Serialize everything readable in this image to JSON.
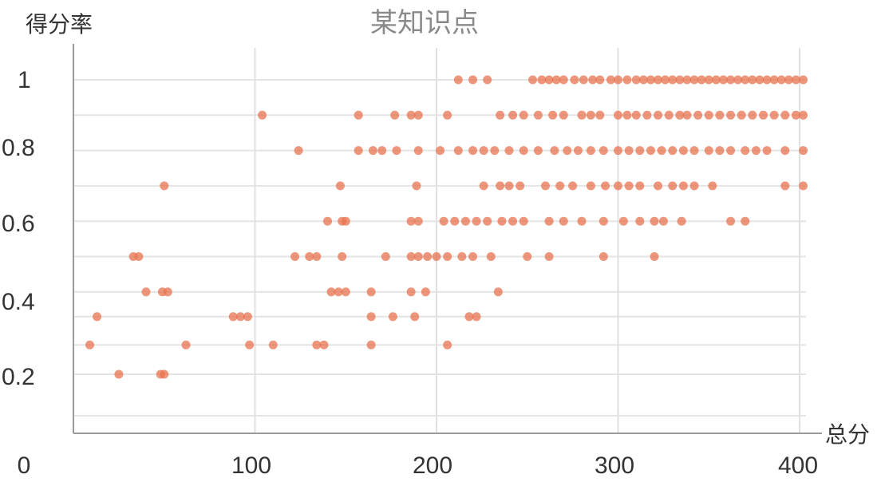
{
  "chart_data": {
    "type": "scatter",
    "title": "某知识点",
    "xlabel": "总分",
    "ylabel": "得分率",
    "xlim": [
      0,
      400
    ],
    "ylim": [
      0,
      1
    ],
    "x_ticks": [
      "0",
      "100",
      "200",
      "300",
      "400"
    ],
    "y_ticks": [
      "0",
      "0.2",
      "0.4",
      "0.6",
      "0.8",
      "1"
    ],
    "grid": true,
    "point_color": "#e8734f",
    "series": [
      {
        "points": [
          [
            212,
            1
          ],
          [
            220,
            1
          ],
          [
            228,
            1
          ],
          [
            253,
            1
          ],
          [
            258,
            1
          ],
          [
            262,
            1
          ],
          [
            266,
            1
          ],
          [
            270,
            1
          ],
          [
            276,
            1
          ],
          [
            281,
            1
          ],
          [
            286,
            1
          ],
          [
            290,
            1
          ],
          [
            296,
            1
          ],
          [
            300,
            1
          ],
          [
            305,
            1
          ],
          [
            310,
            1
          ],
          [
            314,
            1
          ],
          [
            318,
            1
          ],
          [
            322,
            1
          ],
          [
            326,
            1
          ],
          [
            330,
            1
          ],
          [
            334,
            1
          ],
          [
            338,
            1
          ],
          [
            342,
            1
          ],
          [
            346,
            1
          ],
          [
            350,
            1
          ],
          [
            354,
            1
          ],
          [
            358,
            1
          ],
          [
            362,
            1
          ],
          [
            366,
            1
          ],
          [
            370,
            1
          ],
          [
            374,
            1
          ],
          [
            378,
            1
          ],
          [
            382,
            1
          ],
          [
            386,
            1
          ],
          [
            390,
            1
          ],
          [
            394,
            1
          ],
          [
            398,
            1
          ],
          [
            402,
            1
          ],
          [
            104,
            0.9
          ],
          [
            157,
            0.9
          ],
          [
            177,
            0.9
          ],
          [
            186,
            0.9
          ],
          [
            190,
            0.9
          ],
          [
            206,
            0.9
          ],
          [
            235,
            0.9
          ],
          [
            242,
            0.9
          ],
          [
            248,
            0.9
          ],
          [
            256,
            0.9
          ],
          [
            264,
            0.9
          ],
          [
            270,
            0.9
          ],
          [
            280,
            0.9
          ],
          [
            285,
            0.9
          ],
          [
            290,
            0.9
          ],
          [
            300,
            0.9
          ],
          [
            305,
            0.9
          ],
          [
            310,
            0.9
          ],
          [
            316,
            0.9
          ],
          [
            322,
            0.9
          ],
          [
            328,
            0.9
          ],
          [
            334,
            0.9
          ],
          [
            338,
            0.9
          ],
          [
            344,
            0.9
          ],
          [
            350,
            0.9
          ],
          [
            356,
            0.9
          ],
          [
            362,
            0.9
          ],
          [
            368,
            0.9
          ],
          [
            374,
            0.9
          ],
          [
            380,
            0.9
          ],
          [
            386,
            0.9
          ],
          [
            392,
            0.9
          ],
          [
            398,
            0.9
          ],
          [
            402,
            0.9
          ],
          [
            124,
            0.8
          ],
          [
            157,
            0.8
          ],
          [
            165,
            0.8
          ],
          [
            170,
            0.8
          ],
          [
            178,
            0.8
          ],
          [
            190,
            0.8
          ],
          [
            202,
            0.8
          ],
          [
            212,
            0.8
          ],
          [
            220,
            0.8
          ],
          [
            226,
            0.8
          ],
          [
            232,
            0.8
          ],
          [
            240,
            0.8
          ],
          [
            248,
            0.8
          ],
          [
            256,
            0.8
          ],
          [
            265,
            0.8
          ],
          [
            272,
            0.8
          ],
          [
            278,
            0.8
          ],
          [
            285,
            0.8
          ],
          [
            292,
            0.8
          ],
          [
            300,
            0.8
          ],
          [
            306,
            0.8
          ],
          [
            312,
            0.8
          ],
          [
            318,
            0.8
          ],
          [
            324,
            0.8
          ],
          [
            330,
            0.8
          ],
          [
            336,
            0.8
          ],
          [
            342,
            0.8
          ],
          [
            350,
            0.8
          ],
          [
            356,
            0.8
          ],
          [
            362,
            0.8
          ],
          [
            370,
            0.8
          ],
          [
            376,
            0.8
          ],
          [
            382,
            0.8
          ],
          [
            392,
            0.8
          ],
          [
            402,
            0.8
          ],
          [
            50,
            0.7
          ],
          [
            147,
            0.7
          ],
          [
            189,
            0.7
          ],
          [
            226,
            0.7
          ],
          [
            235,
            0.7
          ],
          [
            240,
            0.7
          ],
          [
            246,
            0.7
          ],
          [
            260,
            0.7
          ],
          [
            268,
            0.7
          ],
          [
            275,
            0.7
          ],
          [
            285,
            0.7
          ],
          [
            293,
            0.7
          ],
          [
            300,
            0.7
          ],
          [
            306,
            0.7
          ],
          [
            312,
            0.7
          ],
          [
            322,
            0.7
          ],
          [
            330,
            0.7
          ],
          [
            336,
            0.7
          ],
          [
            342,
            0.7
          ],
          [
            352,
            0.7
          ],
          [
            392,
            0.7
          ],
          [
            402,
            0.7
          ],
          [
            140,
            0.6
          ],
          [
            148,
            0.6
          ],
          [
            150,
            0.6
          ],
          [
            186,
            0.6
          ],
          [
            190,
            0.6
          ],
          [
            204,
            0.6
          ],
          [
            210,
            0.6
          ],
          [
            216,
            0.6
          ],
          [
            222,
            0.6
          ],
          [
            228,
            0.6
          ],
          [
            236,
            0.6
          ],
          [
            242,
            0.6
          ],
          [
            248,
            0.6
          ],
          [
            262,
            0.6
          ],
          [
            270,
            0.6
          ],
          [
            280,
            0.6
          ],
          [
            292,
            0.6
          ],
          [
            303,
            0.6
          ],
          [
            312,
            0.6
          ],
          [
            320,
            0.6
          ],
          [
            325,
            0.6
          ],
          [
            335,
            0.6
          ],
          [
            362,
            0.6
          ],
          [
            370,
            0.6
          ],
          [
            33,
            0.5
          ],
          [
            36,
            0.5
          ],
          [
            122,
            0.5
          ],
          [
            130,
            0.5
          ],
          [
            134,
            0.5
          ],
          [
            148,
            0.5
          ],
          [
            172,
            0.5
          ],
          [
            186,
            0.5
          ],
          [
            190,
            0.5
          ],
          [
            195,
            0.5
          ],
          [
            200,
            0.5
          ],
          [
            206,
            0.5
          ],
          [
            214,
            0.5
          ],
          [
            220,
            0.5
          ],
          [
            230,
            0.5
          ],
          [
            250,
            0.5
          ],
          [
            262,
            0.5
          ],
          [
            292,
            0.5
          ],
          [
            320,
            0.5
          ],
          [
            40,
            0.4
          ],
          [
            49,
            0.4
          ],
          [
            52,
            0.4
          ],
          [
            142,
            0.4
          ],
          [
            146,
            0.4
          ],
          [
            150,
            0.4
          ],
          [
            164,
            0.4
          ],
          [
            186,
            0.4
          ],
          [
            194,
            0.4
          ],
          [
            234,
            0.4
          ],
          [
            13,
            0.33
          ],
          [
            88,
            0.33
          ],
          [
            92,
            0.33
          ],
          [
            96,
            0.33
          ],
          [
            164,
            0.33
          ],
          [
            176,
            0.33
          ],
          [
            188,
            0.33
          ],
          [
            218,
            0.33
          ],
          [
            222,
            0.33
          ],
          [
            9,
            0.25
          ],
          [
            62,
            0.25
          ],
          [
            97,
            0.25
          ],
          [
            110,
            0.25
          ],
          [
            134,
            0.25
          ],
          [
            138,
            0.25
          ],
          [
            164,
            0.25
          ],
          [
            206,
            0.25
          ],
          [
            25,
            0.167
          ],
          [
            48,
            0.167
          ],
          [
            50,
            0.167
          ]
        ]
      }
    ]
  }
}
